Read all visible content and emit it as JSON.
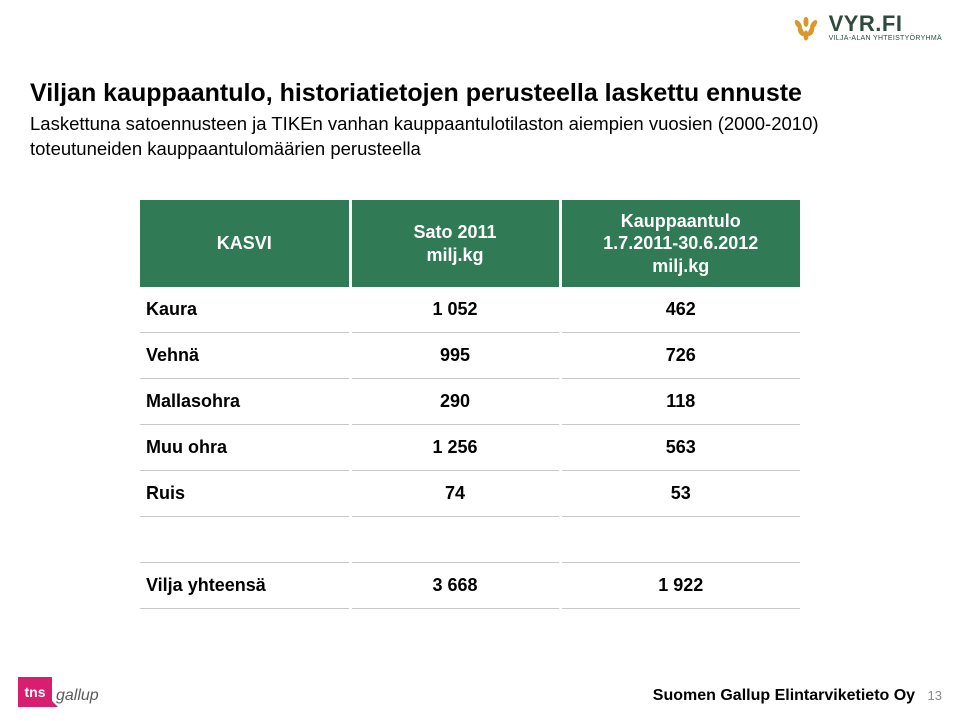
{
  "logo": {
    "main": "VYR.FI",
    "sub": "VILJA-ALAN YHTEISTYÖRYHMÄ",
    "wheat_color": "#d9972c",
    "text_color": "#2e4a3e"
  },
  "heading": "Viljan kauppaantulo, historiatietojen perusteella laskettu ennuste",
  "subheading": "Laskettuna satoennusteen ja TIKEn vanhan kauppaantulotilaston aiempien vuosien (2000-2010) toteutuneiden kauppaantulomäärien perusteella",
  "table": {
    "header_bg": "#307a56",
    "header_fg": "#ffffff",
    "columns": [
      {
        "label": "KASVI"
      },
      {
        "label": "Sato 2011\nmilj.kg"
      },
      {
        "label": "Kauppaantulo\n1.7.2011-30.6.2012\nmilj.kg"
      }
    ],
    "rows": [
      {
        "kasvi": "Kaura",
        "sato": "1 052",
        "kaup": "462"
      },
      {
        "kasvi": "Vehnä",
        "sato": "995",
        "kaup": "726"
      },
      {
        "kasvi": "Mallasohra",
        "sato": "290",
        "kaup": "118"
      },
      {
        "kasvi": "Muu ohra",
        "sato": "1 256",
        "kaup": "563"
      },
      {
        "kasvi": "Ruis",
        "sato": "74",
        "kaup": "53"
      }
    ],
    "total": {
      "kasvi": "Vilja yhteensä",
      "sato": "3 668",
      "kaup": "1 922"
    }
  },
  "footer": {
    "tns": "tns",
    "gallup": "gallup",
    "right_text": "Suomen Gallup Elintarviketieto Oy",
    "page": "13"
  }
}
